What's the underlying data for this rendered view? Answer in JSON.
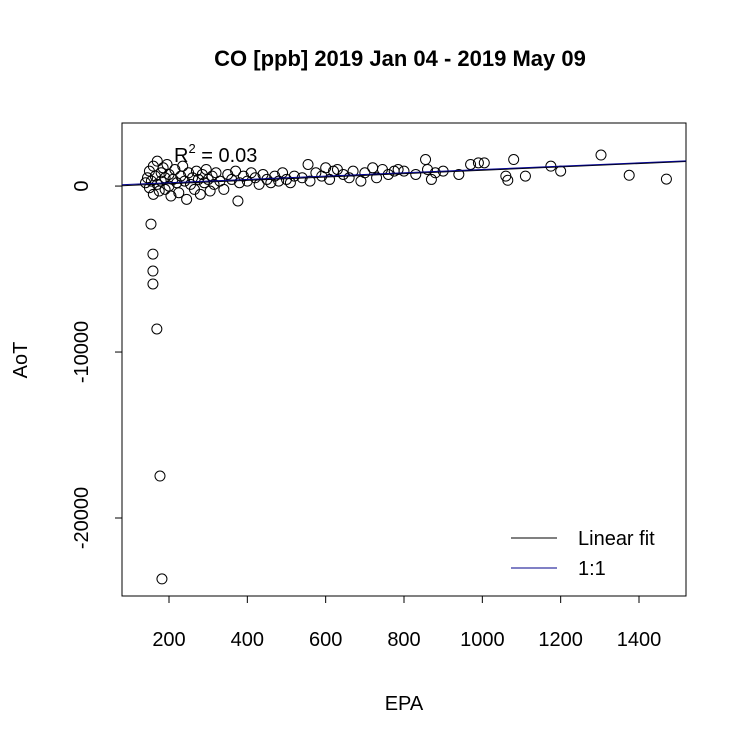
{
  "chart_data": {
    "type": "scatter",
    "title": "CO [ppb] 2019 Jan 04 - 2019 May 09",
    "x_label": "EPA",
    "y_label": "AoT",
    "xlim": [
      80,
      1520
    ],
    "ylim": [
      -24700,
      3800
    ],
    "xticks": [
      200,
      400,
      600,
      800,
      1000,
      1200,
      1400
    ],
    "yticks": [
      0,
      -10000,
      -20000
    ],
    "annotation": {
      "base": "R",
      "sup": "2",
      "rest": " = 0.03"
    },
    "legend": "bottomright",
    "marker_color": "#000000",
    "x": [
      140,
      145,
      150,
      150,
      155,
      160,
      160,
      165,
      170,
      170,
      175,
      180,
      180,
      185,
      190,
      190,
      195,
      200,
      200,
      205,
      210,
      215,
      220,
      225,
      230,
      235,
      240,
      245,
      250,
      255,
      260,
      265,
      270,
      275,
      280,
      285,
      290,
      295,
      300,
      305,
      310,
      315,
      320,
      330,
      340,
      350,
      360,
      370,
      376,
      380,
      390,
      400,
      410,
      420,
      430,
      440,
      450,
      460,
      470,
      480,
      490,
      500,
      510,
      520,
      540,
      555,
      560,
      575,
      590,
      600,
      610,
      620,
      630,
      645,
      660,
      670,
      690,
      700,
      720,
      730,
      745,
      760,
      775,
      785,
      800,
      830,
      855,
      860,
      870,
      880,
      900,
      940,
      970,
      990,
      1005,
      1060,
      1065,
      1080,
      1110,
      1175,
      1200,
      1303,
      1375,
      1470,
      154,
      159,
      159,
      159,
      169,
      177,
      182
    ],
    "y": [
      200,
      500,
      -100,
      900,
      300,
      1200,
      -500,
      600,
      100,
      1500,
      -300,
      800,
      300,
      1100,
      -200,
      500,
      1300,
      0,
      700,
      -600,
      400,
      1000,
      200,
      -400,
      600,
      1200,
      300,
      -800,
      800,
      100,
      500,
      -200,
      900,
      400,
      -500,
      700,
      200,
      1000,
      400,
      -300,
      600,
      100,
      800,
      300,
      -200,
      700,
      400,
      900,
      -900,
      200,
      600,
      300,
      800,
      500,
      100,
      700,
      400,
      200,
      600,
      300,
      800,
      400,
      200,
      600,
      500,
      1300,
      300,
      800,
      600,
      1100,
      400,
      900,
      1000,
      700,
      500,
      900,
      300,
      800,
      1100,
      500,
      1000,
      700,
      900,
      1000,
      900,
      700,
      1600,
      1000,
      400,
      800,
      900,
      700,
      1300,
      1400,
      1400,
      600,
      350,
      1600,
      600,
      1200,
      900,
      1870,
      650,
      420,
      -2290,
      -4100,
      -5120,
      -5900,
      -8610,
      -17470,
      -23670
    ],
    "lines": [
      {
        "name": "Linear fit",
        "color": "#000000",
        "x": [
          80,
          1520
        ],
        "y": [
          20,
          1480
        ]
      },
      {
        "name": "1:1",
        "color": "#00008b",
        "x": [
          80,
          1520
        ],
        "y": [
          80,
          1520
        ]
      }
    ]
  }
}
